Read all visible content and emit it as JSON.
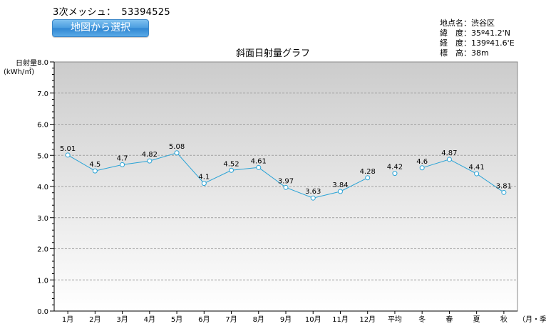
{
  "header": {
    "mesh_label": "3次メッシュ：",
    "mesh_code": "53394525",
    "map_button_label": "地図から選択"
  },
  "info": {
    "place": "地点名：渋谷区",
    "lat": "緯　度：35º41.2'N",
    "lon": "経　度：139º41.6'E",
    "elev": "標　高：38m"
  },
  "colors": {
    "line": "#29a3d6",
    "plot_top": "#cccccc",
    "plot_bottom": "#ffffff",
    "grid": "#a0a0a0"
  },
  "chart_data": {
    "type": "line",
    "title": "斜面日射量グラフ",
    "ylabel": "日射量\n(kWh/㎡)",
    "xlabel_suffix": "（月・季）",
    "ylim": [
      0,
      8
    ],
    "yticks": [
      "0.0",
      "1.0",
      "2.0",
      "3.0",
      "4.0",
      "5.0",
      "6.0",
      "7.0",
      "8.0"
    ],
    "grid": true,
    "categories": [
      "1月",
      "2月",
      "3月",
      "4月",
      "5月",
      "6月",
      "7月",
      "8月",
      "9月",
      "10月",
      "11月",
      "12月",
      "平均",
      "冬",
      "春",
      "夏",
      "秋"
    ],
    "values": [
      5.01,
      4.5,
      4.7,
      4.82,
      5.08,
      4.1,
      4.52,
      4.61,
      3.97,
      3.63,
      3.84,
      4.28,
      4.42,
      4.6,
      4.87,
      4.41,
      3.81
    ],
    "value_labels": [
      "5.01",
      "4.5",
      "4.7",
      "4.82",
      "5.08",
      "4.1",
      "4.52",
      "4.61",
      "3.97",
      "3.63",
      "3.84",
      "4.28",
      "4.42",
      "4.6",
      "4.87",
      "4.41",
      "3.81"
    ],
    "segments": [
      [
        0,
        11
      ],
      [
        12,
        12
      ],
      [
        13,
        16
      ]
    ]
  }
}
